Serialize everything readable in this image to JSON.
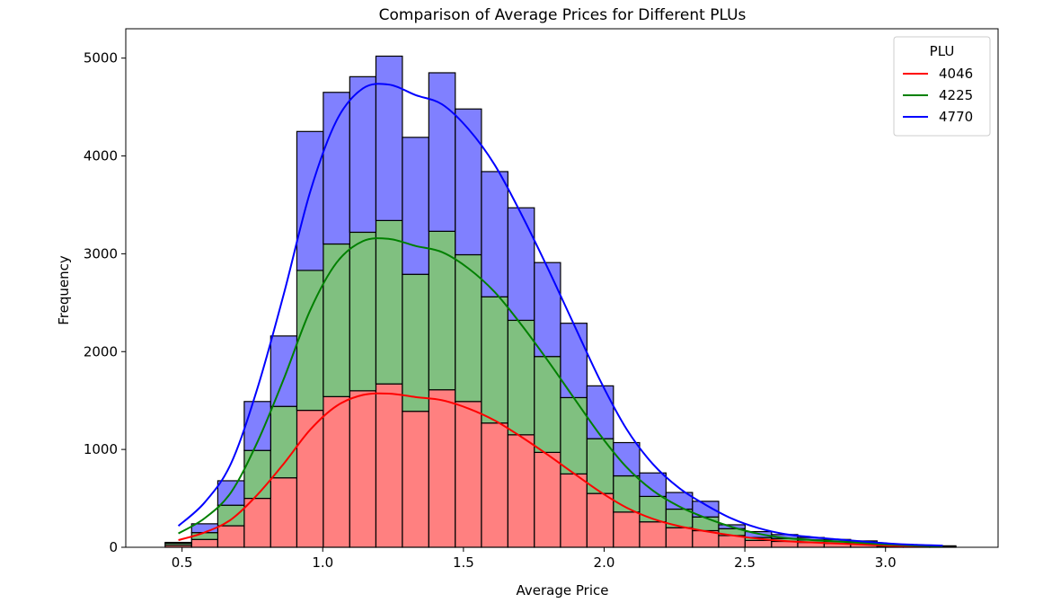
{
  "chart_data": {
    "type": "bar",
    "stacked": true,
    "title": "Comparison of Average Prices for Different PLUs",
    "xlabel": "Average Price",
    "ylabel": "Frequency",
    "xlim": [
      0.3,
      3.4
    ],
    "ylim": [
      0,
      5300
    ],
    "xticks": [
      0.5,
      1.0,
      1.5,
      2.0,
      2.5,
      3.0
    ],
    "xtick_labels": [
      "0.5",
      "1.0",
      "1.5",
      "2.0",
      "2.5",
      "3.0"
    ],
    "yticks": [
      0,
      1000,
      2000,
      3000,
      4000,
      5000
    ],
    "ytick_labels": [
      "0",
      "1000",
      "2000",
      "3000",
      "4000",
      "5000"
    ],
    "bin_edges": [
      0.44,
      0.534,
      0.627,
      0.721,
      0.815,
      0.908,
      1.002,
      1.096,
      1.189,
      1.283,
      1.377,
      1.471,
      1.564,
      1.658,
      1.752,
      1.845,
      1.939,
      2.033,
      2.126,
      2.22,
      2.314,
      2.407,
      2.501,
      2.595,
      2.688,
      2.782,
      2.876,
      2.97,
      3.063,
      3.157,
      3.25
    ],
    "legend": {
      "title": "PLU",
      "position": "top-right"
    },
    "series": [
      {
        "name": "4046",
        "color": "#ff0000",
        "fill": "#ff8080",
        "values": [
          20,
          80,
          220,
          500,
          710,
          1400,
          1540,
          1600,
          1670,
          1390,
          1610,
          1490,
          1270,
          1150,
          970,
          750,
          550,
          360,
          260,
          200,
          170,
          120,
          70,
          60,
          50,
          40,
          30,
          10,
          5,
          5
        ]
      },
      {
        "name": "4225",
        "color": "#008000",
        "fill": "#80c080",
        "values": [
          20,
          70,
          210,
          490,
          730,
          1430,
          1560,
          1620,
          1670,
          1400,
          1620,
          1500,
          1290,
          1170,
          980,
          780,
          560,
          370,
          260,
          190,
          140,
          70,
          30,
          30,
          25,
          20,
          20,
          10,
          5,
          5
        ]
      },
      {
        "name": "4770",
        "color": "#0000ff",
        "fill": "#8080ff",
        "values": [
          10,
          90,
          250,
          500,
          720,
          1420,
          1550,
          1590,
          1680,
          1400,
          1620,
          1490,
          1280,
          1150,
          960,
          760,
          540,
          340,
          240,
          170,
          160,
          40,
          60,
          40,
          25,
          20,
          15,
          10,
          5,
          5
        ]
      }
    ]
  }
}
